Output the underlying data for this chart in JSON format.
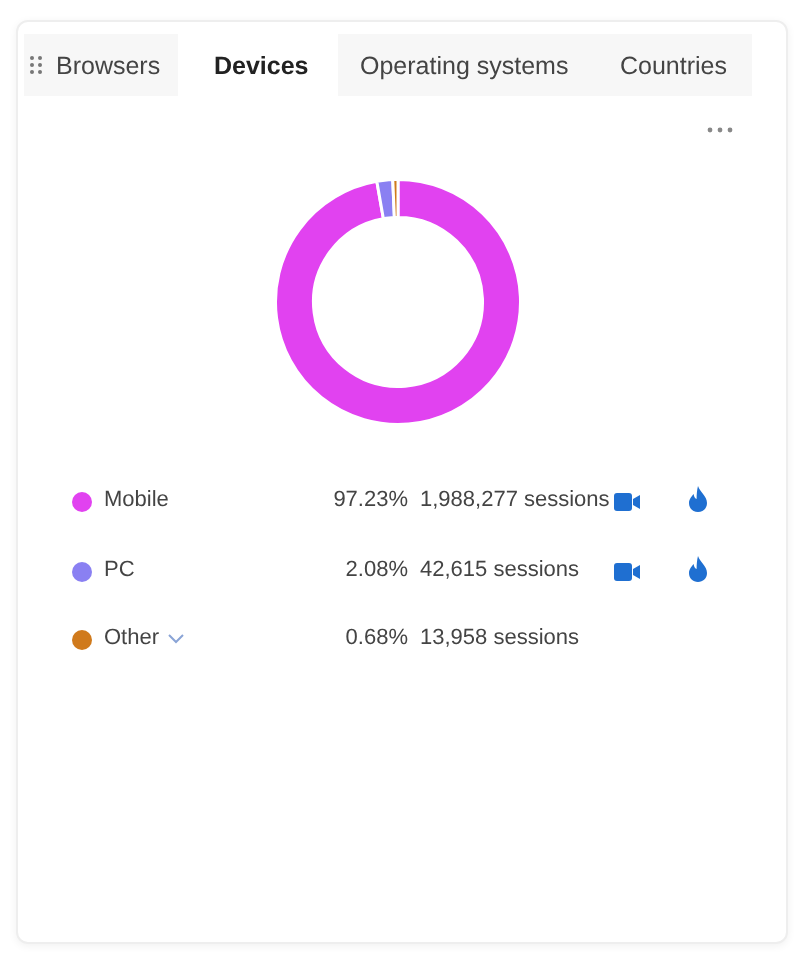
{
  "chart_data": {
    "type": "donut",
    "title": "Devices",
    "categories": [
      "Mobile",
      "PC",
      "Other"
    ],
    "values": [
      1988277,
      42615,
      13958
    ],
    "colors": [
      "#e142f0",
      "#8a80f2",
      "#d07a1c"
    ],
    "value_labels": [
      "1,988,277 sessions",
      "42,615 sessions",
      "13,958 sessions"
    ],
    "legend": "bottom",
    "annotations": [
      "Browsers",
      "Operating systems",
      "Countries",
      "97.23%",
      "2.08%",
      "0.68%"
    ]
  }
}
